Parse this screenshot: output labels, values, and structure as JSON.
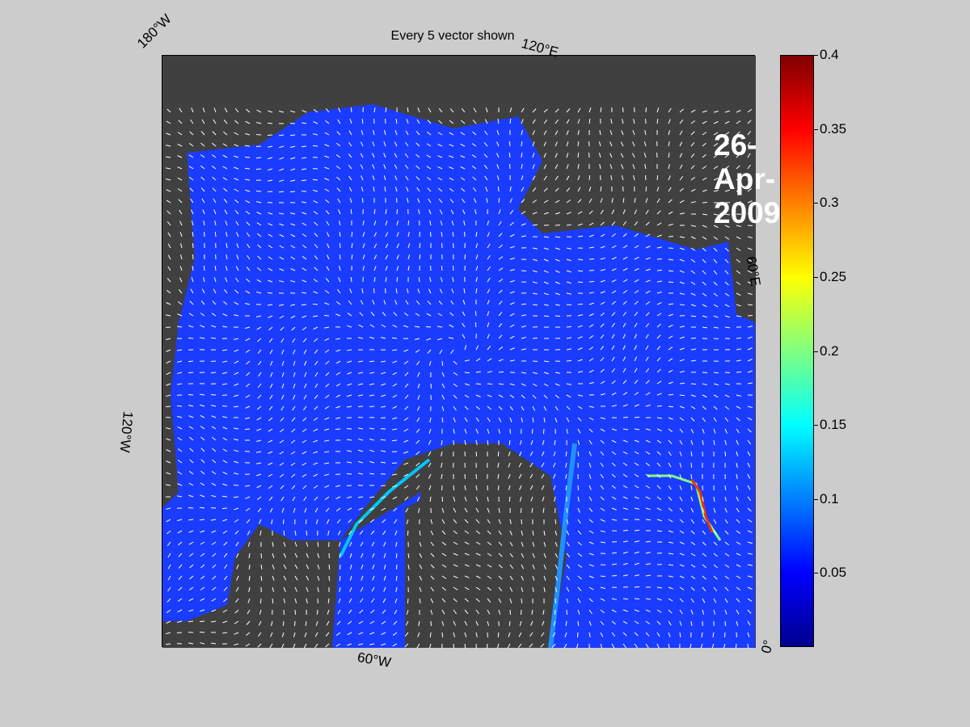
{
  "title": "Every 5 vector shown",
  "date_label": "26-Apr-2009",
  "coord_labels": {
    "lon_180w": "180°W",
    "lon_120e": "120°E",
    "lon_60e": "60°E",
    "lon_120w": "120°W",
    "lon_60w": "60°W",
    "lon_0": "0°"
  },
  "colorbar": {
    "ticks": [
      "0.4",
      "0.35",
      "0.3",
      "0.25",
      "0.2",
      "0.15",
      "0.1",
      "0.05"
    ],
    "tick_values": [
      0.4,
      0.35,
      0.3,
      0.25,
      0.2,
      0.15,
      0.1,
      0.05
    ],
    "range": [
      0,
      0.4
    ],
    "colormap": "jet"
  },
  "colors": {
    "background": "#cccccc",
    "land": "#404040",
    "water_low": "#1a3cff",
    "vectors": "#ffffff"
  }
}
